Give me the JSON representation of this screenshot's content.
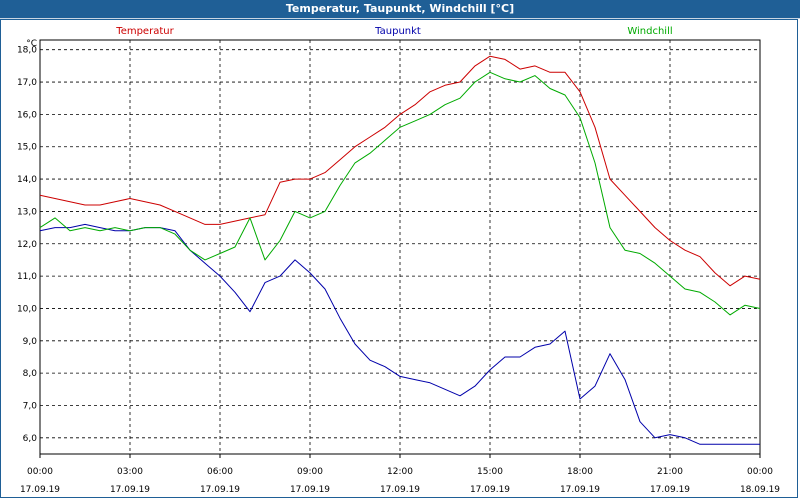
{
  "window": {
    "title": "Temperatur, Taupunkt, Windchill [°C]"
  },
  "chart_data": {
    "type": "line",
    "unit_label": "°C",
    "grid": true,
    "grid_style": "dashed",
    "legend_placement": "top",
    "xlim": [
      "2019-09-17 00:00",
      "2019-09-18 00:00"
    ],
    "ylim": [
      5.5,
      18.3
    ],
    "y_ticks": [
      "6,0",
      "7,0",
      "8,0",
      "9,0",
      "10,0",
      "11,0",
      "12,0",
      "13,0",
      "14,0",
      "15,0",
      "16,0",
      "17,0",
      "18,0"
    ],
    "x_ticks": [
      {
        "time": "00:00",
        "date": "17.09.19"
      },
      {
        "time": "03:00",
        "date": "17.09.19"
      },
      {
        "time": "06:00",
        "date": "17.09.19"
      },
      {
        "time": "09:00",
        "date": "17.09.19"
      },
      {
        "time": "12:00",
        "date": "17.09.19"
      },
      {
        "time": "15:00",
        "date": "17.09.19"
      },
      {
        "time": "18:00",
        "date": "17.09.19"
      },
      {
        "time": "21:00",
        "date": "17.09.19"
      },
      {
        "time": "00:00",
        "date": "18.09.19"
      }
    ],
    "x_hours": [
      0,
      0.5,
      1,
      1.5,
      2,
      2.5,
      3,
      3.5,
      4,
      4.5,
      5,
      5.5,
      6,
      6.5,
      7,
      7.5,
      8,
      8.5,
      9,
      9.5,
      10,
      10.5,
      11,
      11.5,
      12,
      12.5,
      13,
      13.5,
      14,
      14.5,
      15,
      15.5,
      16,
      16.5,
      17,
      17.5,
      18,
      18.5,
      19,
      19.5,
      20,
      20.5,
      21,
      21.5,
      22,
      22.5,
      23,
      23.5,
      24
    ],
    "series": [
      {
        "name": "Temperatur",
        "color": "#cc0000",
        "values": [
          13.5,
          13.4,
          13.3,
          13.2,
          13.2,
          13.3,
          13.4,
          13.3,
          13.2,
          13.0,
          12.8,
          12.6,
          12.6,
          12.7,
          12.8,
          12.9,
          13.9,
          14.0,
          14.0,
          14.2,
          14.6,
          15.0,
          15.3,
          15.6,
          16.0,
          16.3,
          16.7,
          16.9,
          17.0,
          17.5,
          17.8,
          17.7,
          17.4,
          17.5,
          17.3,
          17.3,
          16.7,
          15.6,
          14.0,
          13.5,
          13.0,
          12.5,
          12.1,
          11.8,
          11.6,
          11.1,
          10.7,
          11.0,
          10.9
        ]
      },
      {
        "name": "Taupunkt",
        "color": "#0000aa",
        "values": [
          12.4,
          12.5,
          12.5,
          12.6,
          12.5,
          12.4,
          12.4,
          12.5,
          12.5,
          12.4,
          11.8,
          11.4,
          11.0,
          10.5,
          9.9,
          10.8,
          11.0,
          11.5,
          11.1,
          10.6,
          9.7,
          8.9,
          8.4,
          8.2,
          7.9,
          7.8,
          7.7,
          7.5,
          7.3,
          7.6,
          8.1,
          8.5,
          8.5,
          8.8,
          8.9,
          9.3,
          7.2,
          7.6,
          8.6,
          7.8,
          6.5,
          6.0,
          6.1,
          6.0,
          5.8,
          5.8,
          5.8,
          5.8,
          5.8
        ]
      },
      {
        "name": "Windchill",
        "color": "#00aa00",
        "values": [
          12.5,
          12.8,
          12.4,
          12.5,
          12.4,
          12.5,
          12.4,
          12.5,
          12.5,
          12.3,
          11.8,
          11.5,
          11.7,
          11.9,
          12.8,
          11.5,
          12.1,
          13.0,
          12.8,
          13.0,
          13.8,
          14.5,
          14.8,
          15.2,
          15.6,
          15.8,
          16.0,
          16.3,
          16.5,
          17.0,
          17.3,
          17.1,
          17.0,
          17.2,
          16.8,
          16.6,
          15.9,
          14.5,
          12.5,
          11.8,
          11.7,
          11.4,
          11.0,
          10.6,
          10.5,
          10.2,
          9.8,
          10.1,
          10.0
        ]
      }
    ]
  }
}
